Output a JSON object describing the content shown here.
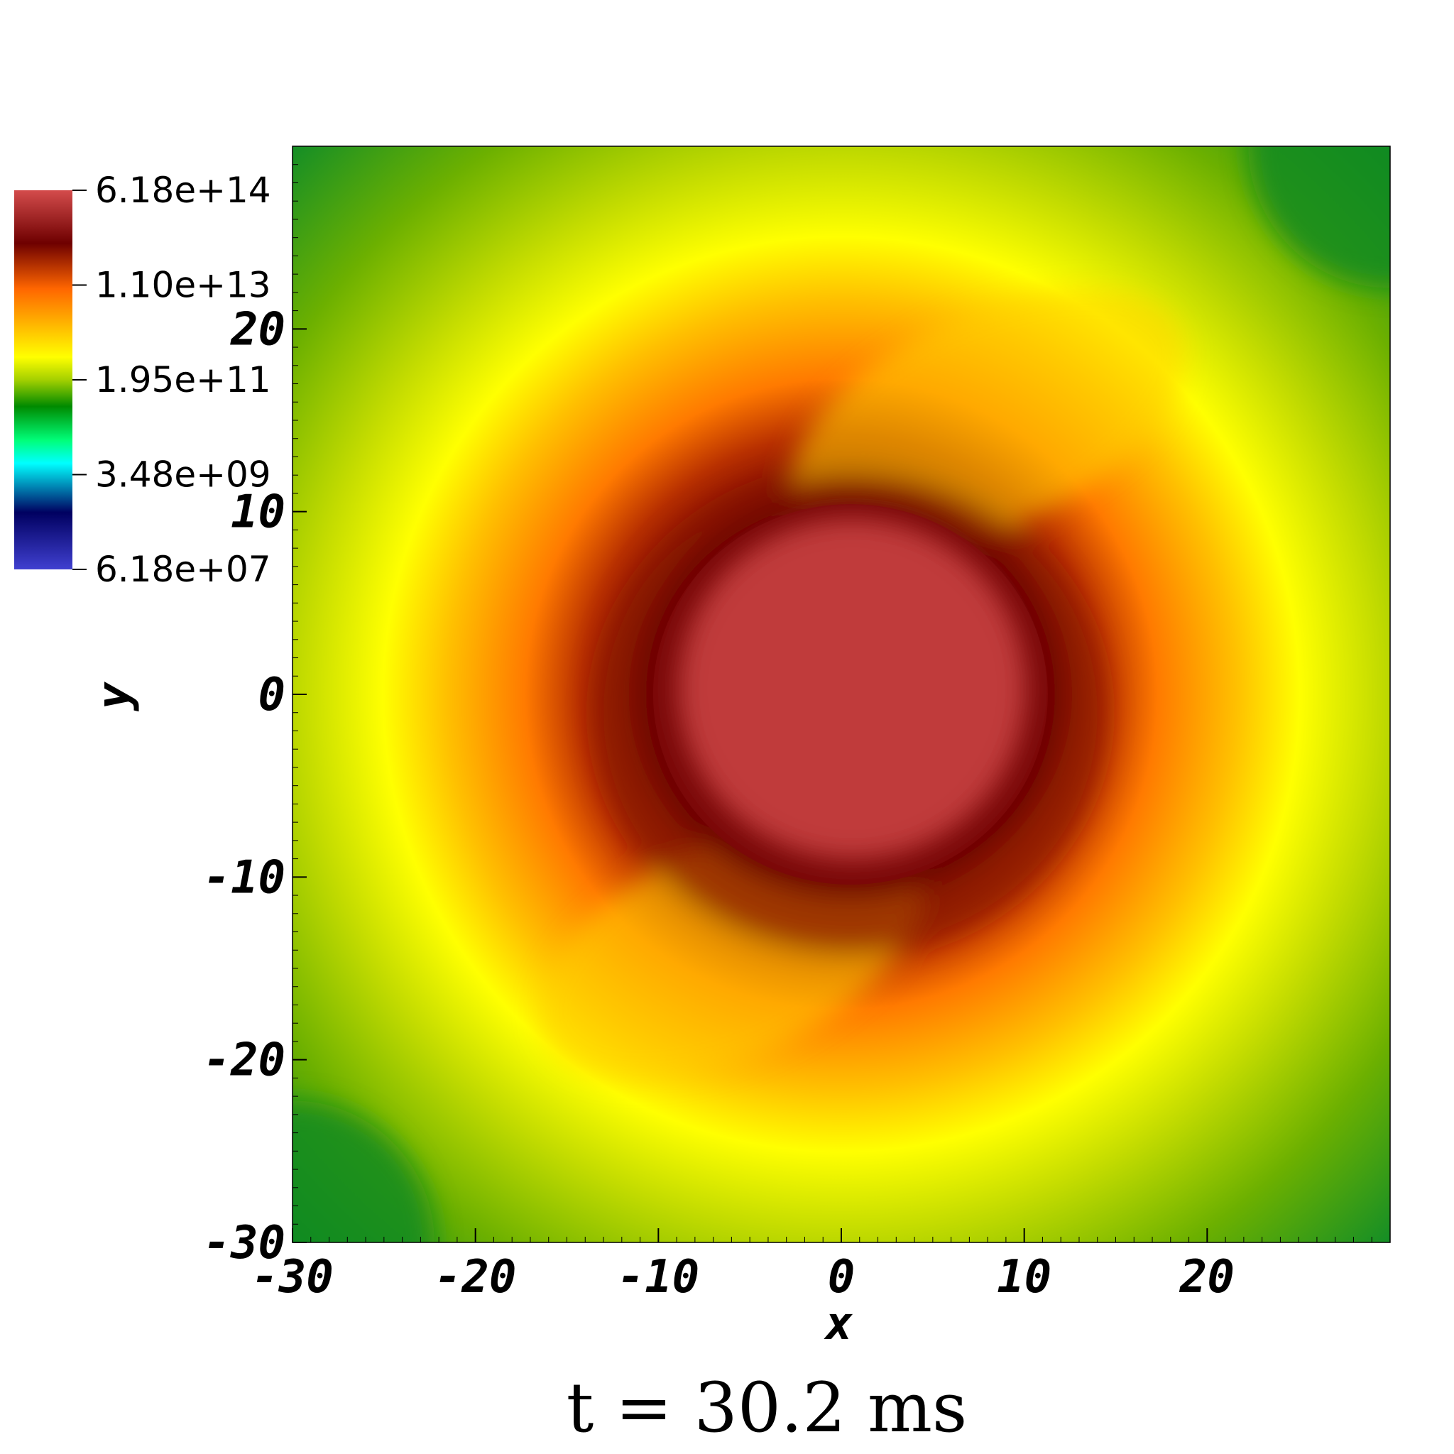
{
  "chart_data": {
    "type": "heatmap",
    "title": "",
    "xlabel": "x",
    "ylabel": "y",
    "xlim": [
      -30,
      30
    ],
    "ylim": [
      -30,
      30
    ],
    "x_ticks": [
      -30,
      -20,
      -10,
      0,
      10,
      20
    ],
    "y_ticks": [
      -30,
      -20,
      -10,
      0,
      10,
      20
    ],
    "x_tick_labels": [
      "-30",
      "-20",
      "-10",
      "0",
      "10",
      "20"
    ],
    "y_tick_labels": [
      "-30",
      "-20",
      "-10",
      "0",
      "10",
      "20"
    ],
    "colorbar": {
      "scale": "log",
      "range": [
        61800000.0,
        618000000000000.0
      ],
      "tick_labels": [
        "6.18e+14",
        "1.10e+13",
        "1.95e+11",
        "3.48e+09",
        "6.18e+07"
      ],
      "colors_top_to_bottom": [
        "#d44c4c",
        "#6e0000",
        "#ff6600",
        "#ffff00",
        "#a4d000",
        "#008a00",
        "#00ff7a",
        "#00ffff",
        "#000060",
        "#4040d0"
      ]
    },
    "field": {
      "description_levels": [
        {
          "radius": 10.5,
          "level": "6.18e+14",
          "color": "#d54748"
        },
        {
          "radius": 14.0,
          "level": "1.10e+13",
          "color": "#7a0a00"
        },
        {
          "radius": 20.0,
          "level": "2.0e+12",
          "color": "#ffaa00"
        },
        {
          "radius": 26.0,
          "level": "1.95e+11",
          "color": "#c8e000"
        },
        {
          "radius": 35.0,
          "level": "3.0e+10",
          "color": "#1f8f10"
        }
      ]
    },
    "annotation": "t = 30.2 ms"
  }
}
